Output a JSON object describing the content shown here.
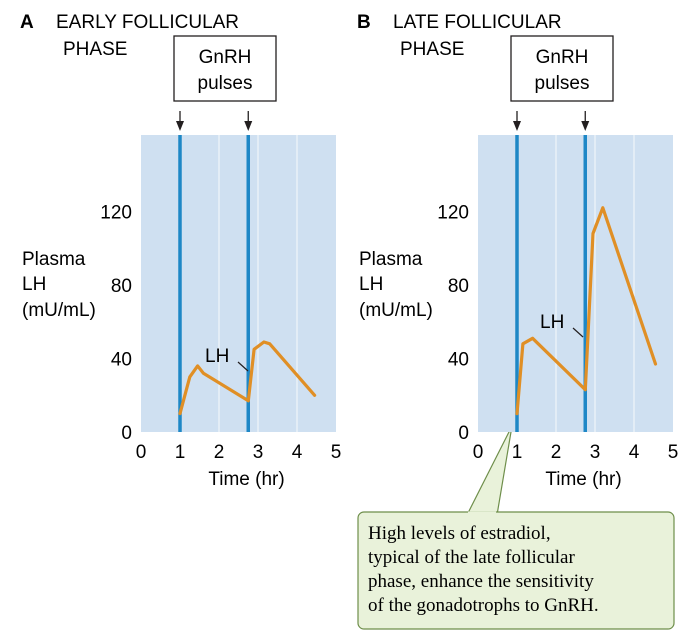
{
  "colors": {
    "plot_bg": "#cfe0f1",
    "pulse_line": "#1e87c6",
    "lh_line": "#e08f25",
    "callout_bg": "#e9f2da",
    "callout_border": "#6e8e4a",
    "text": "#231f20"
  },
  "chart_data": [
    {
      "type": "line",
      "panel_letter": "A",
      "title_line1": "EARLY FOLLICULAR",
      "title_line2": "PHASE",
      "gnrh_box_line1": "GnRH",
      "gnrh_box_line2": "pulses",
      "gnrh_pulse_times": [
        1.0,
        2.75
      ],
      "ylabel_line1": "Plasma",
      "ylabel_line2": "LH",
      "ylabel_line3": "(mU/mL)",
      "xlabel": "Time (hr)",
      "xlim": [
        0,
        5
      ],
      "ylim": [
        0,
        160
      ],
      "x_ticks": [
        "0",
        "1",
        "2",
        "3",
        "4",
        "5"
      ],
      "y_ticks": [
        "0",
        "40",
        "80",
        "120"
      ],
      "series": [
        {
          "name": "LH",
          "x": [
            1.0,
            1.25,
            1.45,
            1.6,
            2.75,
            2.9,
            3.15,
            3.3,
            4.45
          ],
          "y": [
            10,
            30,
            36,
            32,
            17,
            45,
            49,
            48,
            20
          ]
        }
      ]
    },
    {
      "type": "line",
      "panel_letter": "B",
      "title_line1": "LATE FOLLICULAR",
      "title_line2": "PHASE",
      "gnrh_box_line1": "GnRH",
      "gnrh_box_line2": "pulses",
      "gnrh_pulse_times": [
        1.0,
        2.75
      ],
      "ylabel_line1": "Plasma",
      "ylabel_line2": "LH",
      "ylabel_line3": "(mU/mL)",
      "xlabel": "Time (hr)",
      "xlim": [
        0,
        5
      ],
      "ylim": [
        0,
        160
      ],
      "x_ticks": [
        "0",
        "1",
        "2",
        "3",
        "4",
        "5"
      ],
      "y_ticks": [
        "0",
        "40",
        "80",
        "120"
      ],
      "series": [
        {
          "name": "LH",
          "x": [
            1.0,
            1.15,
            1.4,
            2.75,
            2.95,
            3.2,
            4.55
          ],
          "y": [
            10,
            48,
            51,
            23,
            108,
            122,
            37
          ]
        }
      ]
    }
  ],
  "callout": {
    "line1": "High levels of estradiol,",
    "line2": "typical of the late follicular",
    "line3": "phase, enhance the sensitivity",
    "line4": "of the gonadotrophs to GnRH."
  }
}
